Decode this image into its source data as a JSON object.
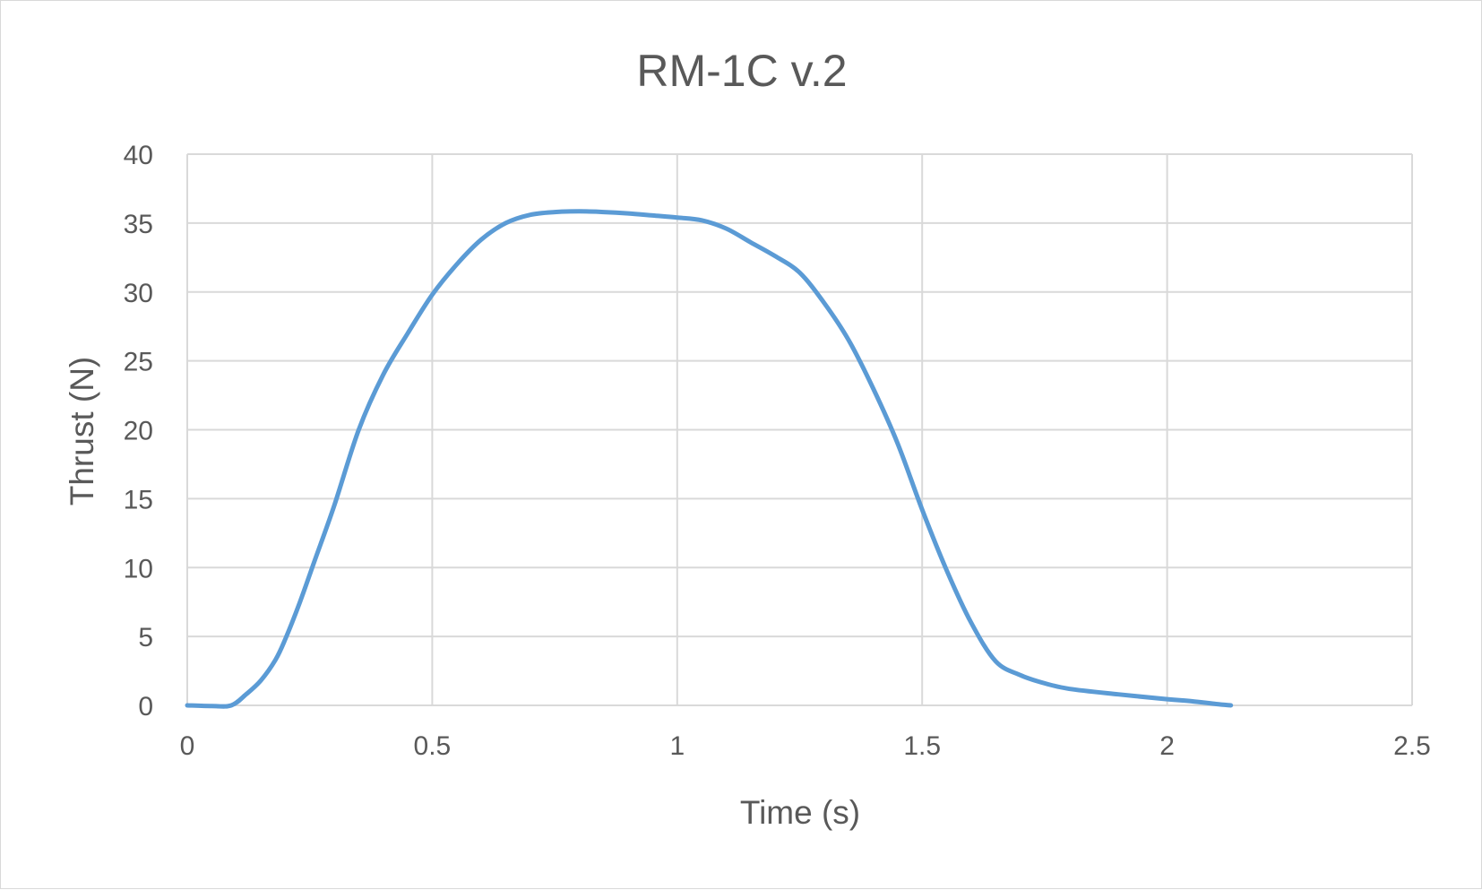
{
  "chart_data": {
    "type": "scatter",
    "title": "RM-1C v.2",
    "xlabel": "Time (s)",
    "ylabel": "Thrust (N)",
    "xlim": [
      0,
      2.5
    ],
    "ylim": [
      0,
      40
    ],
    "x_ticks": [
      "0",
      "0.5",
      "1",
      "1.5",
      "2",
      "2.5"
    ],
    "y_ticks": [
      "0",
      "5",
      "10",
      "15",
      "20",
      "25",
      "30",
      "35",
      "40"
    ],
    "grid": true,
    "legend": "none",
    "series": [
      {
        "color": "#5b9bd5",
        "points": [
          [
            0.0,
            0.0
          ],
          [
            0.05,
            -0.05
          ],
          [
            0.09,
            0.0
          ],
          [
            0.12,
            0.8
          ],
          [
            0.15,
            1.8
          ],
          [
            0.18,
            3.3
          ],
          [
            0.2,
            4.8
          ],
          [
            0.23,
            7.5
          ],
          [
            0.26,
            10.5
          ],
          [
            0.3,
            14.5
          ],
          [
            0.35,
            20.0
          ],
          [
            0.4,
            24.0
          ],
          [
            0.45,
            27.0
          ],
          [
            0.5,
            29.8
          ],
          [
            0.55,
            32.0
          ],
          [
            0.6,
            33.8
          ],
          [
            0.65,
            35.0
          ],
          [
            0.7,
            35.6
          ],
          [
            0.75,
            35.8
          ],
          [
            0.8,
            35.85
          ],
          [
            0.85,
            35.8
          ],
          [
            0.9,
            35.7
          ],
          [
            0.95,
            35.55
          ],
          [
            1.0,
            35.4
          ],
          [
            1.05,
            35.2
          ],
          [
            1.1,
            34.6
          ],
          [
            1.15,
            33.6
          ],
          [
            1.2,
            32.6
          ],
          [
            1.25,
            31.4
          ],
          [
            1.3,
            29.2
          ],
          [
            1.35,
            26.5
          ],
          [
            1.4,
            23.0
          ],
          [
            1.45,
            19.0
          ],
          [
            1.5,
            14.2
          ],
          [
            1.55,
            9.8
          ],
          [
            1.6,
            6.0
          ],
          [
            1.65,
            3.2
          ],
          [
            1.7,
            2.2
          ],
          [
            1.75,
            1.6
          ],
          [
            1.8,
            1.2
          ],
          [
            1.9,
            0.8
          ],
          [
            2.0,
            0.45
          ],
          [
            2.05,
            0.3
          ],
          [
            2.1,
            0.1
          ],
          [
            2.13,
            0.0
          ]
        ]
      }
    ]
  }
}
